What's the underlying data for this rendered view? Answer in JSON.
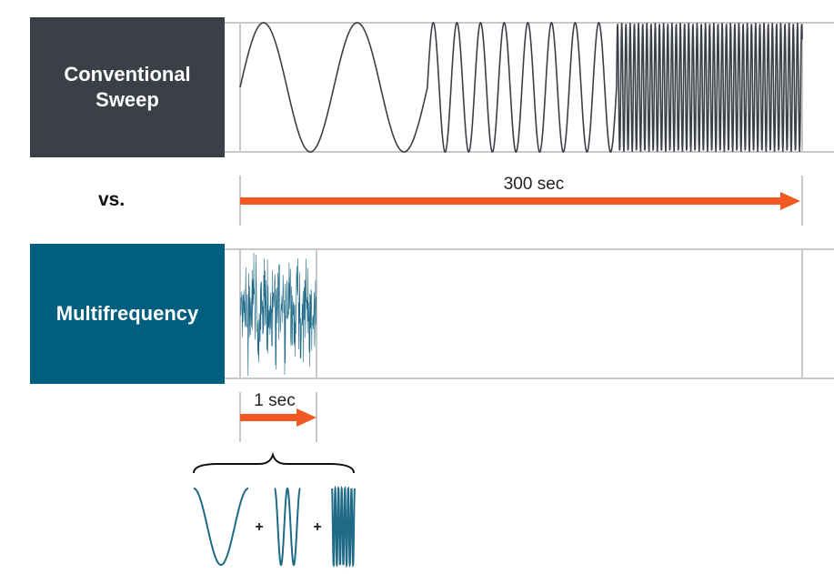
{
  "conventional": {
    "label": "Conventional Sweep",
    "color": "#3b3f47",
    "duration_label": "300 sec"
  },
  "vs_label": "vs.",
  "multifrequency": {
    "label": "Multifrequency",
    "color": "#005e7e",
    "duration_label": "1 sec"
  },
  "colors": {
    "arrow": "#f05a22",
    "frame": "#c8c8c8",
    "wave_dark": "#3b3f47",
    "wave_teal": "#1f6a86"
  },
  "plus_sign": "+"
}
